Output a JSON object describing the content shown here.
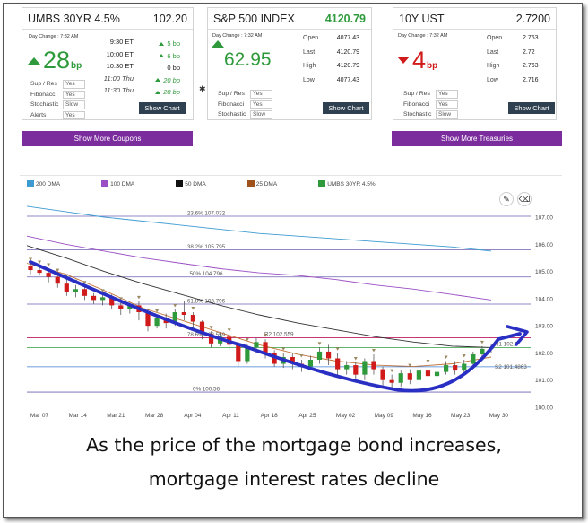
{
  "cards": [
    {
      "symbol": "UMBS 30YR 4.5%",
      "price": "102.20",
      "day_change_label": "Day Change : 7:32 AM",
      "change_value": "28",
      "unit": "bp",
      "direction": "up",
      "times": [
        {
          "time": "9:30 ET",
          "change": "5 bp",
          "dir": "up"
        },
        {
          "time": "10:00 ET",
          "change": "6 bp",
          "dir": "up"
        },
        {
          "time": "10:30 ET",
          "change": "0 bp",
          "dir": "flat"
        },
        {
          "time": "11:00 Thu",
          "change": "20 bp",
          "dir": "up"
        },
        {
          "time": "11:30 Thu",
          "change": "28 bp",
          "dir": "up"
        }
      ],
      "options": [
        {
          "label": "Sup / Res",
          "value": "Yes"
        },
        {
          "label": "Fibonacci",
          "value": "Yes"
        },
        {
          "label": "Stochastic",
          "value": "Slow"
        },
        {
          "label": "Alerts",
          "value": "Yes"
        }
      ],
      "button": "Show Chart",
      "more_button": "Show More Coupons"
    },
    {
      "symbol": "S&P 500 INDEX",
      "price": "4120.79",
      "day_change_label": "Day Change : 7:32 AM",
      "change_value": "62.95",
      "direction": "up",
      "ohlc": [
        {
          "label": "Open",
          "value": "4077.43"
        },
        {
          "label": "Last",
          "value": "4120.79"
        },
        {
          "label": "High",
          "value": "4120.79"
        },
        {
          "label": "Low",
          "value": "4077.43"
        }
      ],
      "options": [
        {
          "label": "Sup / Res",
          "value": "Yes"
        },
        {
          "label": "Fibonacci",
          "value": "Yes"
        },
        {
          "label": "Stochastic",
          "value": "Slow"
        }
      ],
      "button": "Show Chart"
    },
    {
      "symbol": "10Y UST",
      "price": "2.7200",
      "day_change_label": "Day Change : 7:32 AM",
      "change_value": "4",
      "unit": "bp",
      "direction": "down",
      "ohlc": [
        {
          "label": "Open",
          "value": "2.763"
        },
        {
          "label": "Last",
          "value": "2.72"
        },
        {
          "label": "High",
          "value": "2.763"
        },
        {
          "label": "Low",
          "value": "2.716"
        }
      ],
      "options": [
        {
          "label": "Sup / Res",
          "value": "Yes"
        },
        {
          "label": "Fibonacci",
          "value": "Yes"
        },
        {
          "label": "Stochastic",
          "value": "Slow"
        }
      ],
      "button": "Show Chart",
      "more_button": "Show More Treasuries"
    }
  ],
  "colors": {
    "green": "#2e9a3b",
    "red": "#d11b1b",
    "purple_button": "#7b2d9e",
    "dark_button": "#2f4050",
    "annotation_arrow": "#2a2fc4"
  },
  "chart_data": {
    "type": "candlestick",
    "legend": [
      {
        "name": "200 DMA",
        "color": "#3d9bd1"
      },
      {
        "name": "100 DMA",
        "color": "#9b4fc4"
      },
      {
        "name": "50 DMA",
        "color": "#111111"
      },
      {
        "name": "25 DMA",
        "color": "#a0521d"
      },
      {
        "name": "UMBS 30YR 4.5%",
        "color": "#2e9a3b"
      }
    ],
    "ylim": [
      100.0,
      107.0
    ],
    "y_ticks": [
      "107.00",
      "106.00",
      "105.00",
      "104.00",
      "103.00",
      "102.00",
      "101.00",
      "100.00"
    ],
    "x_ticks": [
      "Mar 07",
      "Mar 14",
      "Mar 21",
      "Mar 28",
      "Apr 04",
      "Apr 11",
      "Apr 18",
      "Apr 25",
      "May 02",
      "May 09",
      "May 16",
      "May 23",
      "May 30"
    ],
    "fib_lines": [
      {
        "label": "23.6% 107.032",
        "value": 107.032
      },
      {
        "label": "38.2% 105.795",
        "value": 105.795
      },
      {
        "label": "50% 104.796",
        "value": 104.796
      },
      {
        "label": "61.8% 103.796",
        "value": 103.796
      },
      {
        "label": "78.6% 102.559",
        "value": 102.559
      },
      {
        "label": "0% 100.56",
        "value": 100.56
      }
    ],
    "sr_lines": [
      {
        "label": "R2 102.559",
        "value": 102.559,
        "color": "#d81b60"
      },
      {
        "label": "R1 102.2",
        "value": 102.2,
        "color": "#2e9a3b"
      },
      {
        "label": "S2 101.4863",
        "value": 101.49,
        "color": "#3d7fd1"
      }
    ],
    "ma": {
      "200 DMA": [
        107.4,
        107.2,
        107.0,
        106.85,
        106.7,
        106.55,
        106.4,
        106.3,
        106.2,
        106.1,
        106.0,
        105.9,
        105.75
      ],
      "100 DMA": [
        106.3,
        106.0,
        105.75,
        105.5,
        105.3,
        105.1,
        104.95,
        104.85,
        104.7,
        104.5,
        104.35,
        104.15,
        103.95
      ],
      "50 DMA": [
        105.95,
        105.5,
        105.0,
        104.55,
        104.15,
        103.75,
        103.4,
        103.1,
        102.85,
        102.6,
        102.4,
        102.25,
        102.2
      ],
      "25 DMA": [
        105.3,
        104.9,
        104.3,
        103.65,
        103.2,
        102.75,
        102.3,
        101.95,
        101.7,
        101.55,
        101.5,
        101.6,
        101.85
      ]
    },
    "candles": [
      [
        105.2,
        105.05,
        105.3,
        104.9
      ],
      [
        105.05,
        104.95,
        105.2,
        104.85
      ],
      [
        104.95,
        104.8,
        105.1,
        104.6
      ],
      [
        104.8,
        104.55,
        104.9,
        104.4
      ],
      [
        104.55,
        104.25,
        104.7,
        104.1
      ],
      [
        104.25,
        104.35,
        104.5,
        104.05
      ],
      [
        104.35,
        104.1,
        104.45,
        103.95
      ],
      [
        104.1,
        103.95,
        104.2,
        103.8
      ],
      [
        103.95,
        104.05,
        104.15,
        103.75
      ],
      [
        104.05,
        103.75,
        104.15,
        103.6
      ],
      [
        103.75,
        103.6,
        103.85,
        103.4
      ],
      [
        103.6,
        103.75,
        103.85,
        103.45
      ],
      [
        103.75,
        103.5,
        103.9,
        103.2
      ],
      [
        103.5,
        103.0,
        103.6,
        102.8
      ],
      [
        103.0,
        103.3,
        103.4,
        102.9
      ],
      [
        103.3,
        103.1,
        103.45,
        102.9
      ],
      [
        103.1,
        103.5,
        103.6,
        103.0
      ],
      [
        103.5,
        103.4,
        103.9,
        103.2
      ],
      [
        103.4,
        103.15,
        103.5,
        102.9
      ],
      [
        103.15,
        102.7,
        103.2,
        102.5
      ],
      [
        102.7,
        102.35,
        102.8,
        102.2
      ],
      [
        102.35,
        102.6,
        102.75,
        102.25
      ],
      [
        102.6,
        102.3,
        102.7,
        102.1
      ],
      [
        102.3,
        101.7,
        102.4,
        101.5
      ],
      [
        101.7,
        102.2,
        102.35,
        101.6
      ],
      [
        102.2,
        102.4,
        102.55,
        102.0
      ],
      [
        102.4,
        102.0,
        102.5,
        101.8
      ],
      [
        102.0,
        101.6,
        102.1,
        101.5
      ],
      [
        101.6,
        101.85,
        102.0,
        101.45
      ],
      [
        101.85,
        101.6,
        102.0,
        101.4
      ],
      [
        101.6,
        101.5,
        101.75,
        101.3
      ],
      [
        101.5,
        101.75,
        101.9,
        101.35
      ],
      [
        101.75,
        102.05,
        102.2,
        101.6
      ],
      [
        102.05,
        101.8,
        102.3,
        101.55
      ],
      [
        101.8,
        101.4,
        102.0,
        101.2
      ],
      [
        101.4,
        101.55,
        101.7,
        101.2
      ],
      [
        101.55,
        101.2,
        101.65,
        100.95
      ],
      [
        101.2,
        101.7,
        101.8,
        101.0
      ],
      [
        101.7,
        101.4,
        101.95,
        101.2
      ],
      [
        101.4,
        101.0,
        101.5,
        100.8
      ],
      [
        101.0,
        100.9,
        101.2,
        100.65
      ],
      [
        100.9,
        101.25,
        101.35,
        100.75
      ],
      [
        101.25,
        101.0,
        101.4,
        100.85
      ],
      [
        101.0,
        101.35,
        101.5,
        100.9
      ],
      [
        101.35,
        101.15,
        101.55,
        101.0
      ],
      [
        101.15,
        101.3,
        101.45,
        101.05
      ],
      [
        101.3,
        101.55,
        101.7,
        101.2
      ],
      [
        101.55,
        101.35,
        101.7,
        101.2
      ],
      [
        101.35,
        101.6,
        101.75,
        101.3
      ],
      [
        101.6,
        101.95,
        102.05,
        101.5
      ],
      [
        101.95,
        102.15,
        102.25,
        101.85
      ],
      [
        102.15,
        102.2,
        102.3,
        102.0
      ]
    ]
  },
  "caption": {
    "line1": "As the price of the mortgage bond increases,",
    "line2": "mortgage interest rates decline"
  }
}
